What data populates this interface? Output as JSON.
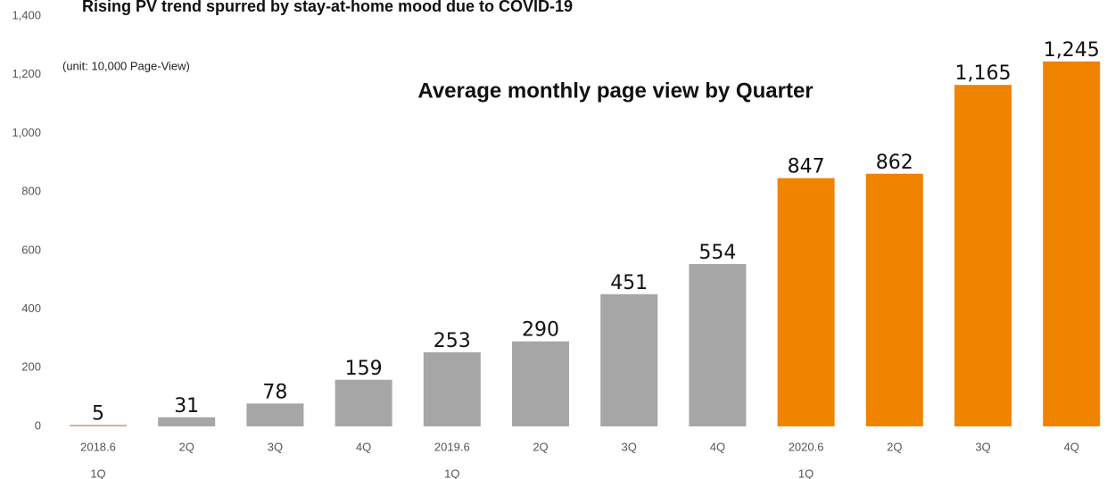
{
  "chart_data": {
    "type": "bar",
    "title": "Rising PV trend spurred by stay-at-home mood due to COVID-19",
    "subtitle": "Average monthly page view by Quarter",
    "annotation": "(unit: 10,000 Page-View)",
    "categories": [
      [
        "2018.6",
        "1Q"
      ],
      [
        "2Q"
      ],
      [
        "3Q"
      ],
      [
        "4Q"
      ],
      [
        "2019.6",
        "1Q"
      ],
      [
        "2Q"
      ],
      [
        "3Q"
      ],
      [
        "4Q"
      ],
      [
        "2020.6",
        "1Q"
      ],
      [
        "2Q"
      ],
      [
        "3Q"
      ],
      [
        "4Q"
      ]
    ],
    "values": [
      5,
      31,
      78,
      159,
      253,
      290,
      451,
      554,
      847,
      862,
      1165,
      1245
    ],
    "value_labels": [
      "5",
      "31",
      "78",
      "159",
      "253",
      "290",
      "451",
      "554",
      "847",
      "862",
      "1,165",
      "1,245"
    ],
    "colors": [
      "#c9a48a",
      "#a6a6a6",
      "#a6a6a6",
      "#a6a6a6",
      "#a6a6a6",
      "#a6a6a6",
      "#a6a6a6",
      "#a6a6a6",
      "#f08300",
      "#f08300",
      "#f08300",
      "#f08300"
    ],
    "ylim": [
      0,
      1400
    ],
    "yticks": [
      0,
      200,
      400,
      600,
      800,
      {
        "value": 1000,
        "label": "1,000"
      },
      {
        "value": 1200,
        "label": "1,200"
      },
      {
        "value": 1400,
        "label": "1,400"
      }
    ],
    "grid": false
  }
}
